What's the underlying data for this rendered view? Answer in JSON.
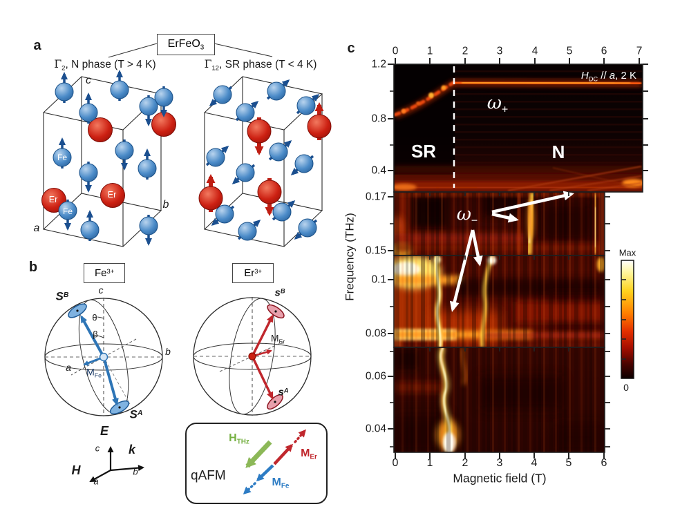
{
  "colors": {
    "fe_sphere_blue": "#3a7bbf",
    "er_sphere_red": "#c01818",
    "fe_vector_blue": "#2e75b6",
    "er_vector_red": "#c0272d",
    "h_thz_green": "#76b043",
    "m_fe_blue": "#2d7cc4",
    "m_er_red": "#c0272d",
    "heat_bright": "#ffd84d",
    "heat_background": "#2a0300"
  },
  "panel_a": {
    "label": "a",
    "compound": {
      "base": "ErFeO",
      "sub": "3"
    },
    "left_phase": {
      "gamma": "Γ",
      "gamma_sub": "2",
      "rest": ", N phase (T > 4 K)"
    },
    "right_phase": {
      "gamma": "Γ",
      "gamma_sub": "12",
      "rest": ", SR phase (T < 4 K)"
    },
    "crystal_axes": {
      "a": "a",
      "b": "b",
      "c": "c"
    },
    "fe_label": "Fe",
    "er_label": "Er"
  },
  "panel_b": {
    "label": "b",
    "fe_ion": {
      "base": "Fe",
      "sup": "3+"
    },
    "er_ion": {
      "base": "Er",
      "sup": "3+"
    },
    "fe_sphere": {
      "sB": {
        "base": "S",
        "sup": "B"
      },
      "sA": {
        "base": "S",
        "sup": "A"
      },
      "theta": "θ",
      "beta": "β",
      "m": {
        "base": "M",
        "sub": "Fe"
      },
      "axis_a": "a",
      "axis_b": "b",
      "axis_c": "c"
    },
    "er_sphere": {
      "sB": {
        "base": "s",
        "sup": "B"
      },
      "sA": {
        "base": "s",
        "sup": "A"
      },
      "m": {
        "base": "M",
        "sub": "Er"
      }
    },
    "triad": {
      "E": "E",
      "k": "k",
      "H": "H",
      "a": "a",
      "b": "b",
      "c": "c"
    },
    "qafm": {
      "title": "qAFM",
      "h_thz": {
        "base": "H",
        "sub": "THz"
      },
      "m_er": {
        "base": "M",
        "sub": "Er"
      },
      "m_fe": {
        "base": "M",
        "sub": "Fe"
      }
    }
  },
  "panel_c": {
    "label": "c",
    "top_axis_ticks": [
      "0",
      "1",
      "2",
      "3",
      "4",
      "5",
      "6",
      "7"
    ],
    "bottom_axis_ticks": [
      "0",
      "1",
      "2",
      "3",
      "4",
      "5",
      "6"
    ],
    "freq_ticks": [
      "1.2",
      "0.8",
      "0.4",
      "0.17",
      "0.15",
      "0.1",
      "0.08",
      "0.06",
      "0.04"
    ],
    "ylabel": "Frequency (THz)",
    "xlabel": "Magnetic field (T)",
    "condition": {
      "base": "H",
      "sub": "DC",
      "sep": " // ",
      "axis": "a",
      "rest": ", 2 K"
    },
    "omega_plus": {
      "base": "ω",
      "sub": "+"
    },
    "omega_minus": {
      "base": "ω",
      "sub": "−"
    },
    "sr_label": "SR",
    "n_label": "N",
    "colorbar": {
      "max": "Max",
      "min": "0"
    }
  },
  "chart_data": {
    "type": "heatmap",
    "title": "THz absorbance spectra of ErFeO3 vs magnetic field at 2 K, H_DC // a",
    "xlabel": "Magnetic field (T)",
    "ylabel": "Frequency (THz)",
    "x_range_top_panel": [
      0,
      7
    ],
    "x_range_lower_panels": [
      0,
      6
    ],
    "legend_position": "right colorbar",
    "colorbar": {
      "max_label": "Max",
      "min_label": "0"
    },
    "panels": [
      {
        "freq_tick_values": [
          1.2,
          0.8,
          0.4
        ],
        "features": [
          "omega_plus magnon branch rises from 0.8 THz at 0 T to ~1.0 THz at ~1.7 T then stays flat to 7 T",
          "SR phase region below ~1.7 T, N phase region above (dashed boundary line at ~1.7 T)",
          "faint diagonal streaks near 0.3 THz converging at high field"
        ]
      },
      {
        "freq_tick_values": [
          0.17,
          0.15
        ],
        "features": [
          "omega_minus branch: bright vertical feature near 4 T",
          "bright features near 5.8-6 T and at low field near 0.15 THz"
        ]
      },
      {
        "freq_tick_values": [
          0.1,
          0.08
        ],
        "features": [
          "omega_minus branch: bright curved lines near 1.3-1.6 T and 2.5-3 T",
          "bright horizontal band at ~0.08 THz for 0-4 T",
          "bright blob at 0-1 T near 0.1 THz"
        ]
      },
      {
        "freq_tick_values": [
          0.06,
          0.04
        ],
        "features": [
          "omega_minus branch: bright wavy vertical line near 1.5-2 T, brightest toward 0.03 THz"
        ]
      }
    ]
  }
}
